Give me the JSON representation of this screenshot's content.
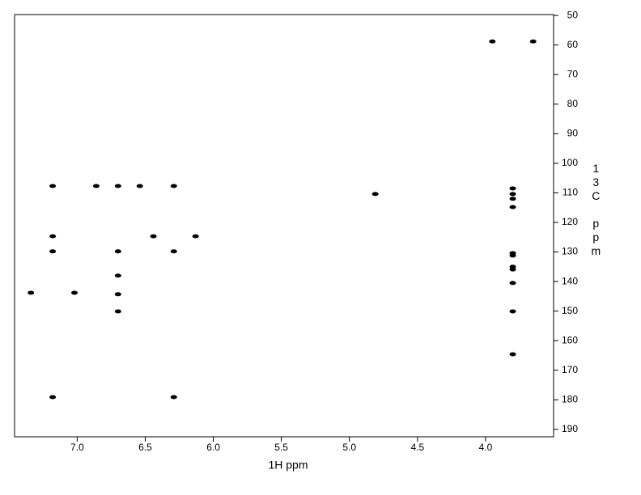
{
  "chart_data": {
    "type": "scatter",
    "x_label": "1H ppm",
    "y_label": "13C ppm",
    "y_axis_side": "right",
    "color": "#000000",
    "xlim": [
      7.46,
      3.5
    ],
    "ylim": [
      192.5,
      49.7
    ],
    "xticks": [
      {
        "value": 7,
        "label": "7.0"
      },
      6.5,
      {
        "value": 6,
        "label": "6.0"
      },
      5.5,
      {
        "value": 5,
        "label": "5.0"
      },
      4.5,
      {
        "value": 4,
        "label": "4.0"
      }
    ],
    "yticks": [
      50,
      60,
      70,
      80,
      90,
      100,
      110,
      120,
      130,
      140,
      150,
      160,
      170,
      180,
      190
    ],
    "x": [
      3.95,
      3.65,
      7.18,
      6.86,
      6.7,
      6.54,
      6.29,
      4.81,
      3.8,
      3.8,
      3.8,
      3.8,
      3.8,
      3.8,
      3.8,
      3.8,
      3.8,
      3.8,
      3.8,
      7.18,
      6.44,
      6.13,
      7.18,
      6.7,
      6.29,
      6.7,
      6.7,
      6.7,
      7.34,
      7.02,
      7.18,
      6.29
    ],
    "values": [
      58.8,
      58.8,
      107.7,
      107.7,
      107.7,
      107.7,
      107.7,
      110.4,
      108.5,
      110.4,
      112.0,
      114.8,
      130.4,
      131.2,
      135.0,
      135.9,
      140.5,
      150.1,
      164.6,
      124.7,
      124.7,
      124.7,
      129.8,
      129.8,
      129.8,
      138.0,
      144.3,
      150.1,
      143.8,
      143.8,
      179.1,
      179.1
    ]
  }
}
